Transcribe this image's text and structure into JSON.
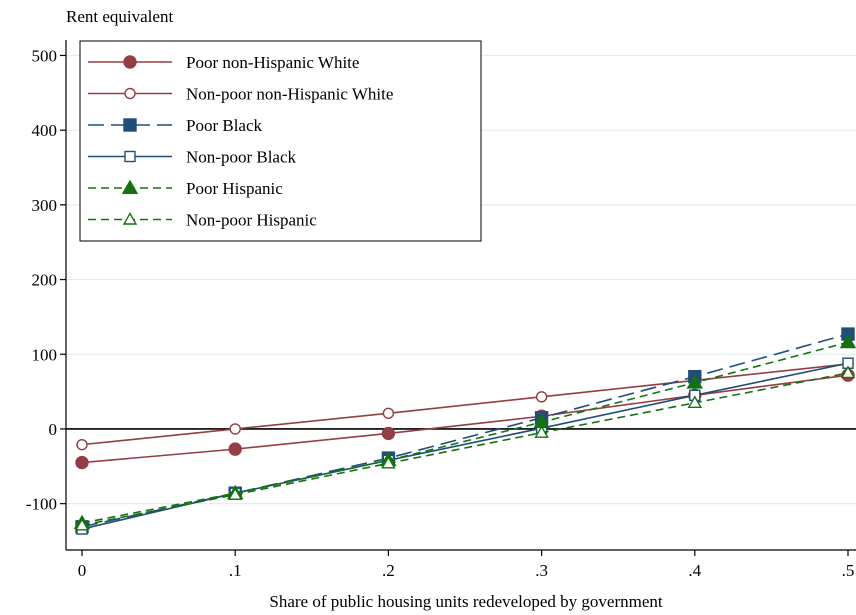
{
  "chart_data": {
    "type": "line",
    "ylabel": "Rent equivalent",
    "xlabel": "Share of public housing units redeveloped by government",
    "x": [
      0,
      0.1,
      0.2,
      0.3,
      0.4,
      0.5
    ],
    "x_tick_labels": [
      "0",
      ".1",
      ".2",
      ".3",
      ".4",
      ".5"
    ],
    "xlim": [
      0,
      0.5
    ],
    "ylim": [
      -150,
      510
    ],
    "y_ticks": [
      -100,
      0,
      100,
      200,
      300,
      400,
      500
    ],
    "y_tick_labels": [
      "-100",
      "0",
      "100",
      "200",
      "300",
      "400",
      "500"
    ],
    "grid": "horizontal",
    "reference_line_y": 0,
    "legend_position": "top-left",
    "series": [
      {
        "name": "Poor non-Hispanic White",
        "color": "#953d44",
        "dash": "solid",
        "marker": "circle",
        "filled": true,
        "values": [
          -45,
          -27,
          -6,
          17,
          45,
          72
        ]
      },
      {
        "name": "Non-poor non-Hispanic White",
        "color": "#953d44",
        "dash": "solid",
        "marker": "circle",
        "filled": false,
        "values": [
          -21,
          0,
          21,
          43,
          65,
          87
        ]
      },
      {
        "name": "Poor Black",
        "color": "#1f4e79",
        "dash": "longdash",
        "marker": "square",
        "filled": true,
        "values": [
          -131,
          -86,
          -39,
          15,
          70,
          127
        ]
      },
      {
        "name": "Non-poor Black",
        "color": "#1f4e79",
        "dash": "solid",
        "marker": "square",
        "filled": false,
        "values": [
          -134,
          -86,
          -42,
          1,
          45,
          88
        ]
      },
      {
        "name": "Poor Hispanic",
        "color": "#13730f",
        "dash": "dash",
        "marker": "triangle",
        "filled": true,
        "values": [
          -126,
          -86,
          -42,
          9,
          62,
          116
        ]
      },
      {
        "name": "Non-poor Hispanic",
        "color": "#13730f",
        "dash": "dash",
        "marker": "triangle",
        "filled": false,
        "values": [
          -129,
          -88,
          -46,
          -5,
          35,
          75
        ]
      }
    ]
  }
}
